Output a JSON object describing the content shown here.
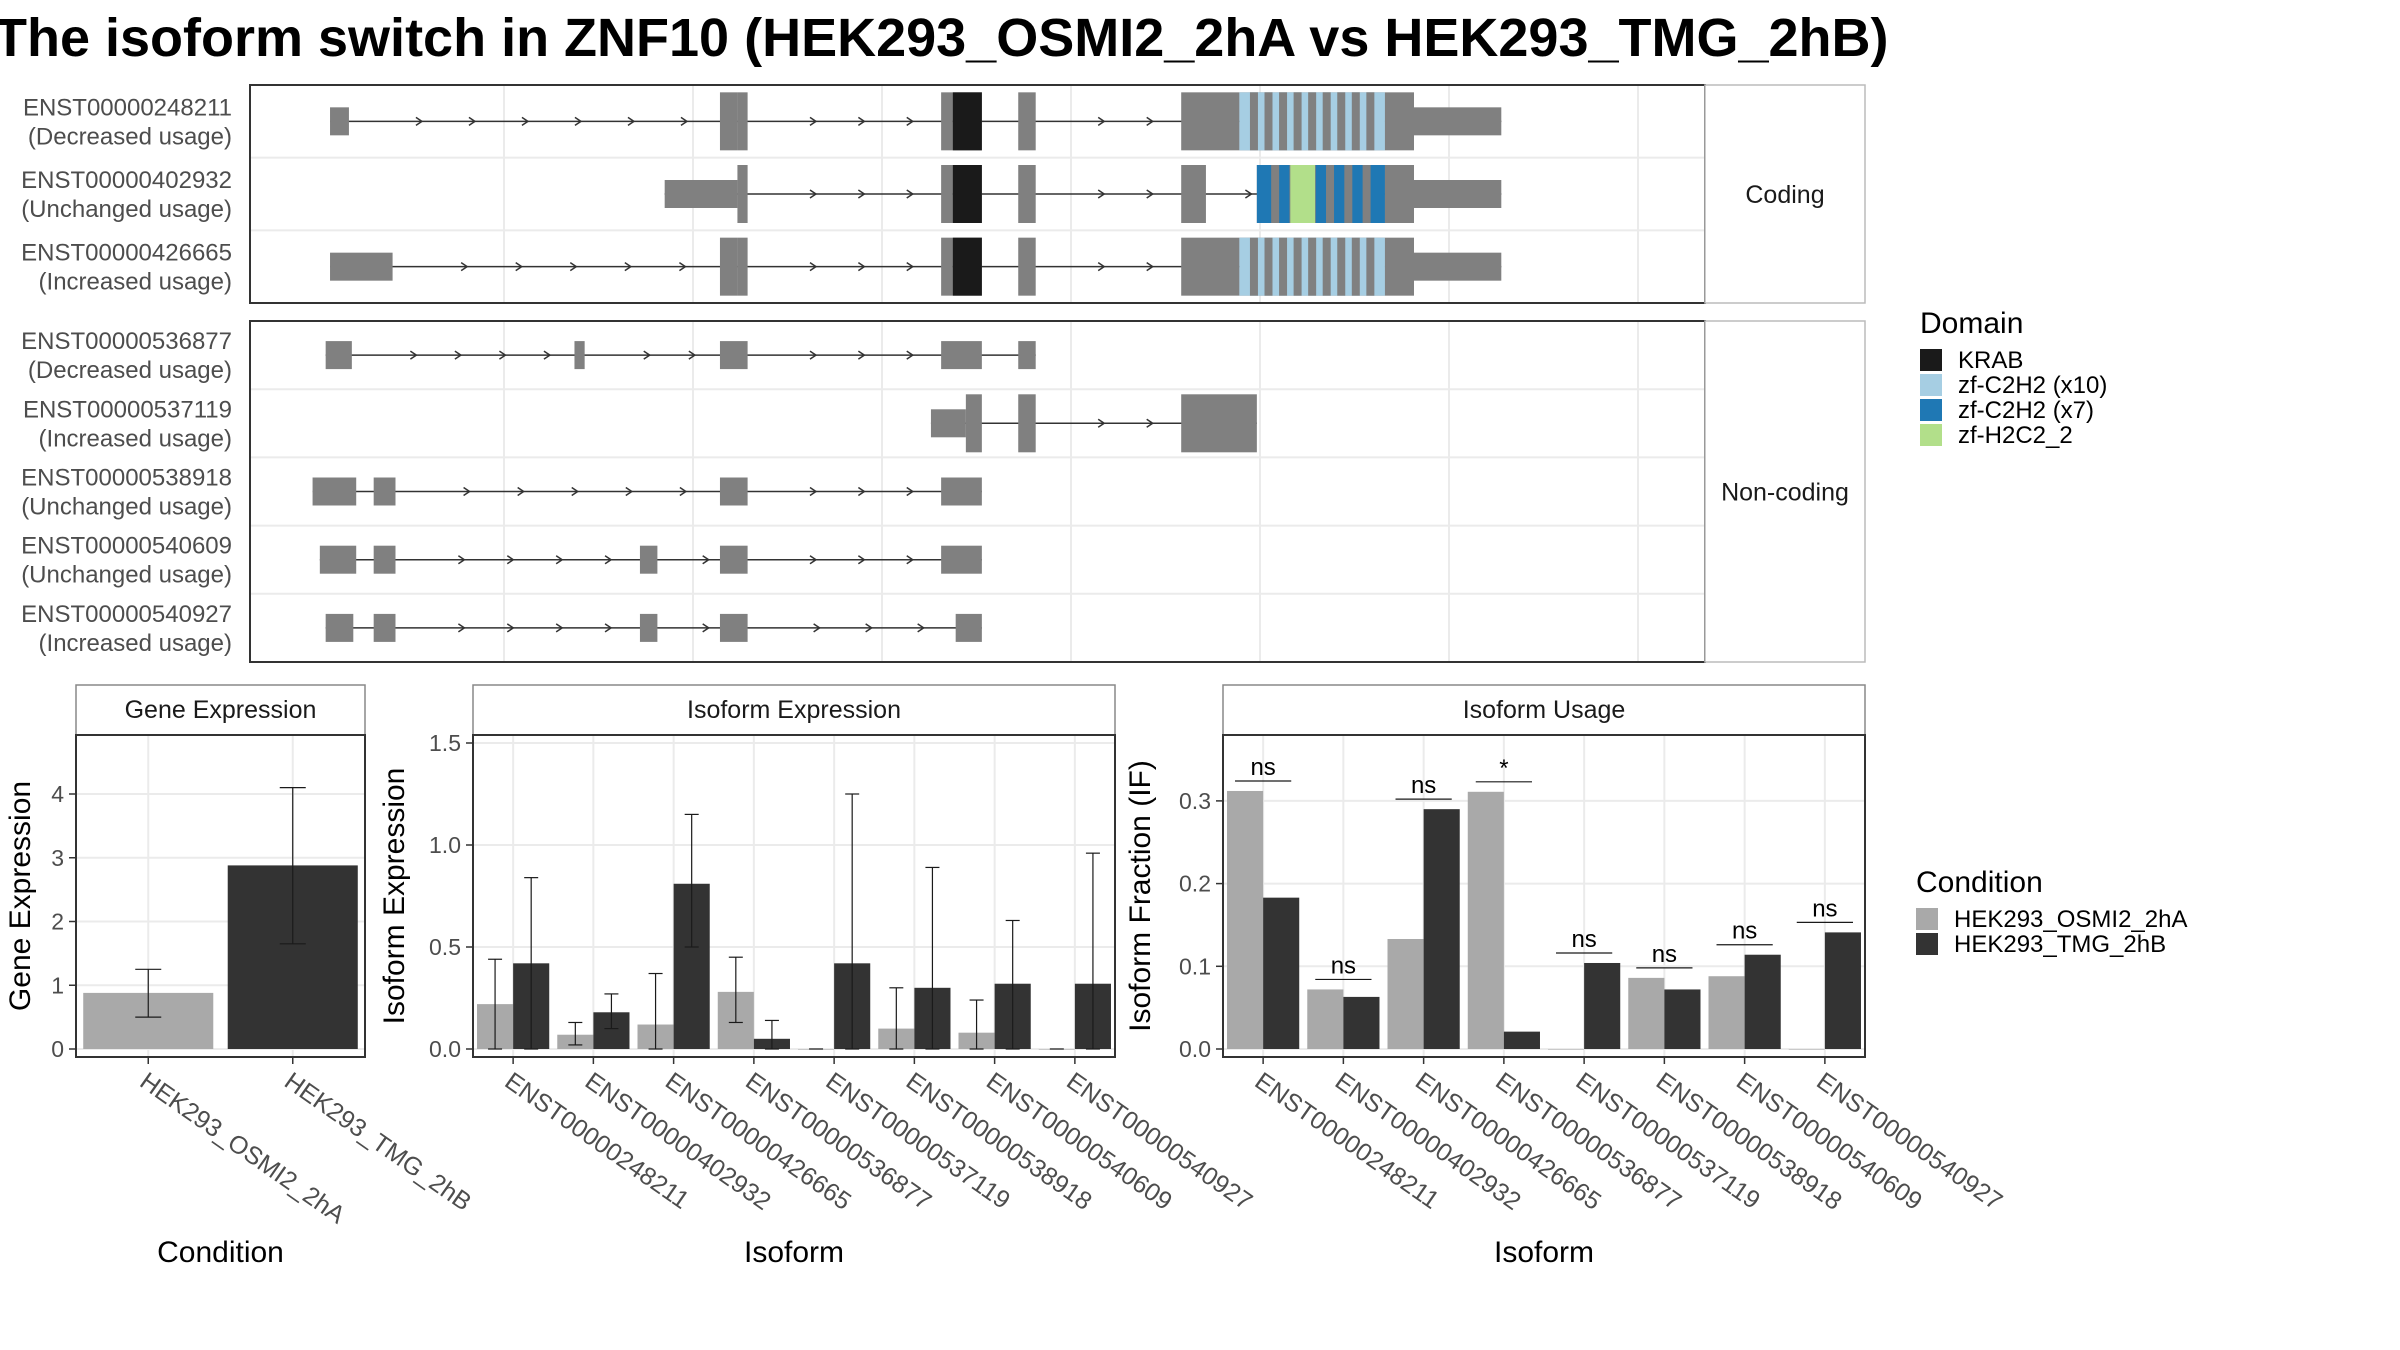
{
  "title": "The isoform switch in ZNF10 (HEK293_OSMI2_2hA vs HEK293_TMG_2hB)",
  "colors": {
    "exon": "#808080",
    "intron": "#333333",
    "cond1": "#a9a9a9",
    "cond2": "#333333",
    "KRAB": "#1a1a1a",
    "zf10": "#a6cee3",
    "zf7": "#1f78b4",
    "zfH2C2": "#b2df8a",
    "panel_border": "#333333",
    "grid": "#ebebeb",
    "strip_fill": "#ffffff"
  },
  "structure": {
    "coding_label": "Coding",
    "noncoding_label": "Non-coding",
    "genomic_range": [
      0,
      100
    ],
    "coding": [
      {
        "id": "ENST00000248211",
        "usage": "(Decreased usage)",
        "exons": [
          [
            5.5,
            6.8
          ],
          [
            32.3,
            33.5
          ],
          [
            33.5,
            34.2
          ],
          [
            47.5,
            48.3
          ],
          [
            48.3,
            50.3
          ],
          [
            52.8,
            54
          ],
          [
            64,
            68
          ],
          [
            68,
            78
          ],
          [
            78,
            80
          ],
          [
            80,
            86
          ]
        ],
        "domains": [
          {
            "type": "KRAB",
            "range": [
              48.3,
              50.3
            ]
          },
          {
            "type": "zf10",
            "range": [
              68,
              78
            ]
          }
        ]
      },
      {
        "id": "ENST00000402932",
        "usage": "(Unchanged usage)",
        "exons": [
          [
            28.5,
            33.5
          ],
          [
            33.5,
            34.2
          ],
          [
            47.5,
            48.3
          ],
          [
            48.3,
            50.3
          ],
          [
            52.8,
            54
          ],
          [
            64,
            65.7
          ],
          [
            69.2,
            78
          ],
          [
            78,
            80
          ],
          [
            80,
            86
          ]
        ],
        "domains": [
          {
            "type": "KRAB",
            "range": [
              48.3,
              50.3
            ]
          },
          {
            "type": "zf7",
            "range": [
              69.2,
              78
            ]
          },
          {
            "type": "zfH2C2",
            "range": [
              71.5,
              73.2
            ]
          }
        ]
      },
      {
        "id": "ENST00000426665",
        "usage": "(Increased usage)",
        "exons": [
          [
            5.5,
            9.8
          ],
          [
            32.3,
            33.5
          ],
          [
            33.5,
            34.2
          ],
          [
            47.5,
            48.3
          ],
          [
            48.3,
            50.3
          ],
          [
            52.8,
            54
          ],
          [
            64,
            68
          ],
          [
            68,
            78
          ],
          [
            78,
            80
          ],
          [
            80,
            86
          ]
        ],
        "domains": [
          {
            "type": "KRAB",
            "range": [
              48.3,
              50.3
            ]
          },
          {
            "type": "zf10",
            "range": [
              68,
              78
            ]
          }
        ]
      }
    ],
    "noncoding": [
      {
        "id": "ENST00000536877",
        "usage": "(Decreased usage)",
        "exons": [
          [
            5.2,
            7
          ],
          [
            22.3,
            23
          ],
          [
            32.3,
            34.2
          ],
          [
            47.5,
            50.3
          ],
          [
            52.8,
            54
          ]
        ]
      },
      {
        "id": "ENST00000537119",
        "usage": "(Increased usage)",
        "exons": [
          [
            46.8,
            49.2
          ],
          [
            49.2,
            50.3
          ],
          [
            52.8,
            54
          ],
          [
            64,
            69.2
          ]
        ]
      },
      {
        "id": "ENST00000538918",
        "usage": "(Unchanged usage)",
        "exons": [
          [
            4.3,
            7.3
          ],
          [
            8.5,
            10
          ],
          [
            32.3,
            34.2
          ],
          [
            47.5,
            50.3
          ]
        ]
      },
      {
        "id": "ENST00000540609",
        "usage": "(Unchanged usage)",
        "exons": [
          [
            4.8,
            7.3
          ],
          [
            8.5,
            10
          ],
          [
            26.8,
            28
          ],
          [
            32.3,
            34.2
          ],
          [
            47.5,
            50.3
          ]
        ]
      },
      {
        "id": "ENST00000540927",
        "usage": "(Increased usage)",
        "exons": [
          [
            5.2,
            7.1
          ],
          [
            8.5,
            10
          ],
          [
            26.8,
            28
          ],
          [
            32.3,
            34.2
          ],
          [
            48.5,
            50.3
          ]
        ]
      }
    ]
  },
  "legend_domain": {
    "title": "Domain",
    "items": [
      {
        "label": "KRAB",
        "color": "#1a1a1a"
      },
      {
        "label": "zf-C2H2 (x10)",
        "color": "#a6cee3"
      },
      {
        "label": "zf-C2H2 (x7)",
        "color": "#1f78b4"
      },
      {
        "label": "zf-H2C2_2",
        "color": "#b2df8a"
      }
    ]
  },
  "legend_condition": {
    "title": "Condition",
    "items": [
      {
        "label": "HEK293_OSMI2_2hA",
        "color": "#a9a9a9"
      },
      {
        "label": "HEK293_TMG_2hB",
        "color": "#333333"
      }
    ]
  },
  "chart_data": [
    {
      "type": "bar",
      "title": "Gene Expression",
      "xlabel": "Condition",
      "ylabel": "Gene Expression",
      "ylim": [
        0,
        4.8
      ],
      "yticks": [
        0,
        1,
        2,
        3,
        4
      ],
      "categories": [
        "HEK293_OSMI2_2hA",
        "HEK293_TMG_2hB"
      ],
      "values": [
        0.88,
        2.88
      ],
      "errors": [
        [
          0.5,
          1.25
        ],
        [
          1.65,
          4.1
        ]
      ]
    },
    {
      "type": "bar",
      "title": "Isoform Expression",
      "xlabel": "Isoform",
      "ylabel": "Isoform Expression",
      "ylim": [
        0,
        1.5
      ],
      "yticks": [
        0.0,
        0.5,
        1.0,
        1.5
      ],
      "categories": [
        "ENST00000248211",
        "ENST00000402932",
        "ENST00000426665",
        "ENST00000536877",
        "ENST00000537119",
        "ENST00000538918",
        "ENST00000540609",
        "ENST00000540927"
      ],
      "series": [
        {
          "name": "HEK293_OSMI2_2hA",
          "values": [
            0.22,
            0.07,
            0.12,
            0.28,
            0.0,
            0.1,
            0.08,
            0.0
          ],
          "errors": [
            [
              0.0,
              0.44
            ],
            [
              0.02,
              0.13
            ],
            [
              0.0,
              0.37
            ],
            [
              0.13,
              0.45
            ],
            [
              0,
              0
            ],
            [
              0.0,
              0.3
            ],
            [
              0.0,
              0.24
            ],
            [
              0,
              0
            ]
          ]
        },
        {
          "name": "HEK293_TMG_2hB",
          "values": [
            0.42,
            0.18,
            0.81,
            0.05,
            0.42,
            0.3,
            0.32,
            0.32
          ],
          "errors": [
            [
              0.0,
              0.84
            ],
            [
              0.1,
              0.27
            ],
            [
              0.5,
              1.15
            ],
            [
              0.0,
              0.14
            ],
            [
              0.0,
              1.25
            ],
            [
              0.0,
              0.89
            ],
            [
              0.0,
              0.63
            ],
            [
              0.0,
              0.96
            ]
          ]
        }
      ]
    },
    {
      "type": "bar",
      "title": "Isoform Usage",
      "xlabel": "Isoform",
      "ylabel": "Isoform Fraction (IF)",
      "ylim": [
        0,
        0.37
      ],
      "yticks": [
        0.0,
        0.1,
        0.2,
        0.3
      ],
      "categories": [
        "ENST00000248211",
        "ENST00000402932",
        "ENST00000426665",
        "ENST00000536877",
        "ENST00000537119",
        "ENST00000538918",
        "ENST00000540609",
        "ENST00000540927"
      ],
      "series": [
        {
          "name": "HEK293_OSMI2_2hA",
          "values": [
            0.312,
            0.072,
            0.133,
            0.311,
            0.0,
            0.086,
            0.088,
            0.0
          ]
        },
        {
          "name": "HEK293_TMG_2hB",
          "values": [
            0.183,
            0.063,
            0.29,
            0.021,
            0.104,
            0.072,
            0.114,
            0.141
          ]
        }
      ],
      "significance": [
        "ns",
        "ns",
        "ns",
        "*",
        "ns",
        "ns",
        "ns",
        "ns"
      ]
    }
  ]
}
